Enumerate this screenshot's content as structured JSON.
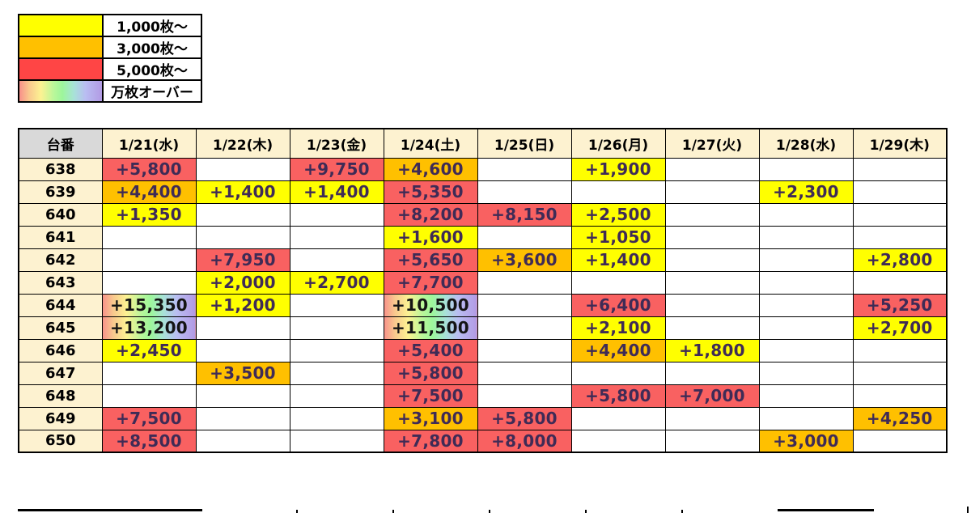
{
  "legend": {
    "items": [
      {
        "label": "1,000枚〜",
        "swatch": "yellow",
        "color": "#ffff00"
      },
      {
        "label": "3,000枚〜",
        "swatch": "orange",
        "color": "#ffc000"
      },
      {
        "label": "5,000枚〜",
        "swatch": "red",
        "color": "#ff4545"
      },
      {
        "label": "万枚オーバー",
        "swatch": "rainbow",
        "color": "rainbow-gradient"
      }
    ]
  },
  "colors": {
    "cell_yellow": "#ffff00",
    "cell_orange": "#ffc000",
    "cell_red": "#f96161",
    "rainbow_stops": [
      "#f8918a",
      "#fcf292",
      "#9df69b",
      "#b9bdf2",
      "#b29ae4"
    ],
    "header_cream": "#fdf2d0",
    "corner_gray": "#d9d9d9",
    "value_text": "#3f2b56",
    "border": "#000000"
  },
  "table": {
    "corner_header": "台番",
    "date_headers": [
      "1/21(水)",
      "1/22(木)",
      "1/23(金)",
      "1/24(土)",
      "1/25(日)",
      "1/26(月)",
      "1/27(火)",
      "1/28(水)",
      "1/29(木)"
    ],
    "rows": [
      {
        "machine": "638",
        "cells": [
          {
            "v": "+5,800",
            "c": "r"
          },
          {
            "v": "",
            "c": ""
          },
          {
            "v": "+9,750",
            "c": "r"
          },
          {
            "v": "+4,600",
            "c": "o"
          },
          {
            "v": "",
            "c": ""
          },
          {
            "v": "+1,900",
            "c": "y"
          },
          {
            "v": "",
            "c": ""
          },
          {
            "v": "",
            "c": ""
          },
          {
            "v": "",
            "c": ""
          }
        ]
      },
      {
        "machine": "639",
        "cells": [
          {
            "v": "+4,400",
            "c": "o"
          },
          {
            "v": "+1,400",
            "c": "y"
          },
          {
            "v": "+1,400",
            "c": "y"
          },
          {
            "v": "+5,350",
            "c": "r"
          },
          {
            "v": "",
            "c": ""
          },
          {
            "v": "",
            "c": ""
          },
          {
            "v": "",
            "c": ""
          },
          {
            "v": "+2,300",
            "c": "y"
          },
          {
            "v": "",
            "c": ""
          }
        ]
      },
      {
        "machine": "640",
        "cells": [
          {
            "v": "+1,350",
            "c": "y"
          },
          {
            "v": "",
            "c": ""
          },
          {
            "v": "",
            "c": ""
          },
          {
            "v": "+8,200",
            "c": "r"
          },
          {
            "v": "+8,150",
            "c": "r"
          },
          {
            "v": "+2,500",
            "c": "y"
          },
          {
            "v": "",
            "c": ""
          },
          {
            "v": "",
            "c": ""
          },
          {
            "v": "",
            "c": ""
          }
        ]
      },
      {
        "machine": "641",
        "cells": [
          {
            "v": "",
            "c": ""
          },
          {
            "v": "",
            "c": ""
          },
          {
            "v": "",
            "c": ""
          },
          {
            "v": "+1,600",
            "c": "y"
          },
          {
            "v": "",
            "c": ""
          },
          {
            "v": "+1,050",
            "c": "y"
          },
          {
            "v": "",
            "c": ""
          },
          {
            "v": "",
            "c": ""
          },
          {
            "v": "",
            "c": ""
          }
        ]
      },
      {
        "machine": "642",
        "cells": [
          {
            "v": "",
            "c": ""
          },
          {
            "v": "+7,950",
            "c": "r"
          },
          {
            "v": "",
            "c": ""
          },
          {
            "v": "+5,650",
            "c": "r"
          },
          {
            "v": "+3,600",
            "c": "o"
          },
          {
            "v": "+1,400",
            "c": "y"
          },
          {
            "v": "",
            "c": ""
          },
          {
            "v": "",
            "c": ""
          },
          {
            "v": "+2,800",
            "c": "y"
          }
        ]
      },
      {
        "machine": "643",
        "cells": [
          {
            "v": "",
            "c": ""
          },
          {
            "v": "+2,000",
            "c": "y"
          },
          {
            "v": "+2,700",
            "c": "y"
          },
          {
            "v": "+7,700",
            "c": "r"
          },
          {
            "v": "",
            "c": ""
          },
          {
            "v": "",
            "c": ""
          },
          {
            "v": "",
            "c": ""
          },
          {
            "v": "",
            "c": ""
          },
          {
            "v": "",
            "c": ""
          }
        ]
      },
      {
        "machine": "644",
        "cells": [
          {
            "v": "+15,350",
            "c": "g"
          },
          {
            "v": "+1,200",
            "c": "y"
          },
          {
            "v": "",
            "c": ""
          },
          {
            "v": "+10,500",
            "c": "g"
          },
          {
            "v": "",
            "c": ""
          },
          {
            "v": "+6,400",
            "c": "r"
          },
          {
            "v": "",
            "c": ""
          },
          {
            "v": "",
            "c": ""
          },
          {
            "v": "+5,250",
            "c": "r"
          }
        ]
      },
      {
        "machine": "645",
        "cells": [
          {
            "v": "+13,200",
            "c": "g"
          },
          {
            "v": "",
            "c": ""
          },
          {
            "v": "",
            "c": ""
          },
          {
            "v": "+11,500",
            "c": "g"
          },
          {
            "v": "",
            "c": ""
          },
          {
            "v": "+2,100",
            "c": "y"
          },
          {
            "v": "",
            "c": ""
          },
          {
            "v": "",
            "c": ""
          },
          {
            "v": "+2,700",
            "c": "y"
          }
        ]
      },
      {
        "machine": "646",
        "cells": [
          {
            "v": "+2,450",
            "c": "y"
          },
          {
            "v": "",
            "c": ""
          },
          {
            "v": "",
            "c": ""
          },
          {
            "v": "+5,400",
            "c": "r"
          },
          {
            "v": "",
            "c": ""
          },
          {
            "v": "+4,400",
            "c": "o"
          },
          {
            "v": "+1,800",
            "c": "y"
          },
          {
            "v": "",
            "c": ""
          },
          {
            "v": "",
            "c": ""
          }
        ]
      },
      {
        "machine": "647",
        "cells": [
          {
            "v": "",
            "c": ""
          },
          {
            "v": "+3,500",
            "c": "o"
          },
          {
            "v": "",
            "c": ""
          },
          {
            "v": "+5,800",
            "c": "r"
          },
          {
            "v": "",
            "c": ""
          },
          {
            "v": "",
            "c": ""
          },
          {
            "v": "",
            "c": ""
          },
          {
            "v": "",
            "c": ""
          },
          {
            "v": "",
            "c": ""
          }
        ]
      },
      {
        "machine": "648",
        "cells": [
          {
            "v": "",
            "c": ""
          },
          {
            "v": "",
            "c": ""
          },
          {
            "v": "",
            "c": ""
          },
          {
            "v": "+7,500",
            "c": "r"
          },
          {
            "v": "",
            "c": ""
          },
          {
            "v": "+5,800",
            "c": "r"
          },
          {
            "v": "+7,000",
            "c": "r"
          },
          {
            "v": "",
            "c": ""
          },
          {
            "v": "",
            "c": ""
          }
        ]
      },
      {
        "machine": "649",
        "cells": [
          {
            "v": "+7,500",
            "c": "r"
          },
          {
            "v": "",
            "c": ""
          },
          {
            "v": "",
            "c": ""
          },
          {
            "v": "+3,100",
            "c": "o"
          },
          {
            "v": "+5,800",
            "c": "r"
          },
          {
            "v": "",
            "c": ""
          },
          {
            "v": "",
            "c": ""
          },
          {
            "v": "",
            "c": ""
          },
          {
            "v": "+4,250",
            "c": "o"
          }
        ]
      },
      {
        "machine": "650",
        "cells": [
          {
            "v": "+8,500",
            "c": "r"
          },
          {
            "v": "",
            "c": ""
          },
          {
            "v": "",
            "c": ""
          },
          {
            "v": "+7,800",
            "c": "r"
          },
          {
            "v": "+8,000",
            "c": "r"
          },
          {
            "v": "",
            "c": ""
          },
          {
            "v": "",
            "c": ""
          },
          {
            "v": "+3,000",
            "c": "o"
          },
          {
            "v": "",
            "c": ""
          }
        ]
      }
    ]
  }
}
